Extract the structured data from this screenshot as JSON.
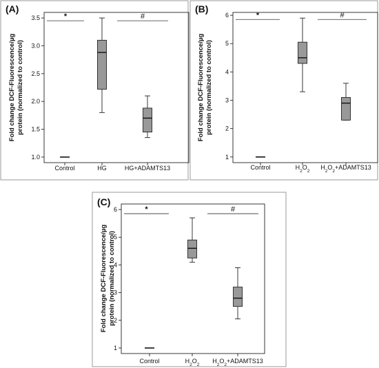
{
  "figure": {
    "panel_labels": [
      "(A)",
      "(B)",
      "(C)"
    ]
  },
  "chart_data": [
    {
      "type": "box",
      "panel_label": "(A)",
      "ylabel_lines": [
        "Fold change DCF-Fluorescence/µg",
        "protein (normalized to control)"
      ],
      "categories": [
        {
          "label": "Control",
          "sub": false
        },
        {
          "label": "HG",
          "sub": false
        },
        {
          "label": "HG+ADAMTS13",
          "sub": false
        }
      ],
      "yticks": [
        "1.0",
        "1.5",
        "2.0",
        "2.5",
        "3.0",
        "3.5"
      ],
      "ylim": [
        0.9,
        3.6
      ],
      "boxes": [
        {
          "min": 1.0,
          "q1": 1.0,
          "median": 1.0,
          "q3": 1.0,
          "max": 1.0
        },
        {
          "min": 1.8,
          "q1": 2.22,
          "median": 2.88,
          "q3": 3.1,
          "max": 3.5
        },
        {
          "min": 1.35,
          "q1": 1.45,
          "median": 1.7,
          "q3": 1.88,
          "max": 2.1
        }
      ],
      "annotations": [
        {
          "text": "*",
          "from": 0,
          "to": 0,
          "y": 3.45
        },
        {
          "text": "#",
          "from": 1,
          "to": 2,
          "y": 3.45
        }
      ]
    },
    {
      "type": "box",
      "panel_label": "(B)",
      "ylabel_lines": [
        "Fold change DCF-Fluorescence/µg",
        "protein (normalized to control)"
      ],
      "categories": [
        {
          "label": "Control",
          "sub": false
        },
        {
          "label": "H2O2",
          "sub": true
        },
        {
          "label": "H2O2+ADAMTS13",
          "sub": true
        }
      ],
      "yticks": [
        "1",
        "2",
        "3",
        "4",
        "5",
        "6"
      ],
      "ylim": [
        0.8,
        6.1
      ],
      "boxes": [
        {
          "min": 1.0,
          "q1": 1.0,
          "median": 1.0,
          "q3": 1.0,
          "max": 1.0
        },
        {
          "min": 3.3,
          "q1": 4.3,
          "median": 4.5,
          "q3": 5.05,
          "max": 5.9
        },
        {
          "min": 2.3,
          "q1": 2.3,
          "median": 2.9,
          "q3": 3.1,
          "max": 3.6
        }
      ],
      "annotations": [
        {
          "text": "*",
          "from": 0,
          "to": 0,
          "y": 5.85
        },
        {
          "text": "#",
          "from": 1,
          "to": 2,
          "y": 5.85
        }
      ]
    },
    {
      "type": "box",
      "panel_label": "(C)",
      "ylabel_lines": [
        "Fold change DCF-Fluorescence/µg",
        "protein (normalized to control)"
      ],
      "categories": [
        {
          "label": "Control",
          "sub": false
        },
        {
          "label": "H2O2",
          "sub": true
        },
        {
          "label": "H2O2+ADAMTS13",
          "sub": true
        }
      ],
      "yticks": [
        "1",
        "2",
        "3",
        "4",
        "5",
        "6"
      ],
      "ylim": [
        0.8,
        6.2
      ],
      "boxes": [
        {
          "min": 1.0,
          "q1": 1.0,
          "median": 1.0,
          "q3": 1.0,
          "max": 1.0
        },
        {
          "min": 4.1,
          "q1": 4.25,
          "median": 4.6,
          "q3": 4.9,
          "max": 5.7
        },
        {
          "min": 2.05,
          "q1": 2.5,
          "median": 2.8,
          "q3": 3.2,
          "max": 3.9
        }
      ],
      "annotations": [
        {
          "text": "*",
          "from": 0,
          "to": 0,
          "y": 5.85
        },
        {
          "text": "#",
          "from": 1,
          "to": 2,
          "y": 5.85
        }
      ]
    }
  ]
}
